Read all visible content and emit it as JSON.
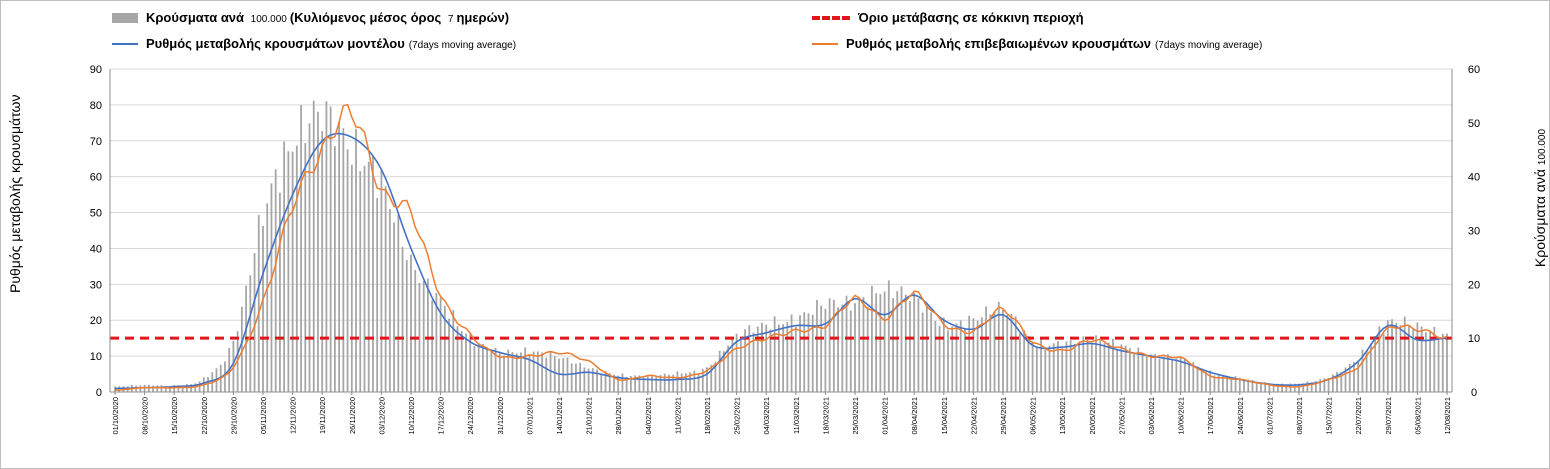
{
  "legend": {
    "bars_label": "Κρούσματα ανά",
    "bars_label_small": "100.000",
    "bars_label_rest": "(Κυλιόμενος μέσος όρος",
    "bars_label_small2": "7",
    "bars_label_end": "ημερών)",
    "threshold_label": "Όριο μετάβασης σε κόκκινη περιοχή",
    "model_label": "Ρυθμός μεταβολής κρουσμάτων μοντέλου",
    "model_label_small": "(7days moving average)",
    "confirmed_label": "Ρυθμός μεταβολής επιβεβαιωμένων κρουσμάτων",
    "confirmed_label_small": "(7days moving average)"
  },
  "axes": {
    "left_title": "Ρυθμός μεταβολής κρουσμάτων",
    "right_title_main": "Κρούσματα ανά",
    "right_title_small": "100.000"
  },
  "colors": {
    "bars": "#a6a6a6",
    "model_line": "#4472c4",
    "confirmed_line": "#ed7d31",
    "threshold": "#e0161b",
    "grid": "#d9d9d9"
  },
  "chart_data": {
    "type": "bar+line",
    "left_axis": {
      "min": 0,
      "max": 90,
      "step": 10
    },
    "right_axis": {
      "min": 0,
      "max": 60,
      "step": 10
    },
    "grid": true,
    "legend_position": "top",
    "x_tick_labels": [
      "01/10/2020",
      "08/10/2020",
      "15/10/2020",
      "22/10/2020",
      "29/10/2020",
      "05/11/2020",
      "12/11/2020",
      "19/11/2020",
      "26/11/2020",
      "03/12/2020",
      "10/12/2020",
      "17/12/2020",
      "24/12/2020",
      "31/12/2020",
      "07/01/2021",
      "14/01/2021",
      "21/01/2021",
      "28/01/2021",
      "04/02/2021",
      "11/02/2021",
      "18/02/2021",
      "25/02/2021",
      "04/03/2021",
      "11/03/2021",
      "18/03/2021",
      "25/03/2021",
      "01/04/2021",
      "08/04/2021",
      "15/04/2021",
      "22/04/2021",
      "29/04/2021",
      "06/05/2021",
      "13/05/2021",
      "20/05/2021",
      "27/05/2021",
      "03/06/2021",
      "10/06/2021",
      "17/06/2021",
      "24/06/2021",
      "01/07/2021",
      "08/07/2021",
      "15/07/2021",
      "22/07/2021",
      "29/07/2021",
      "05/08/2021",
      "12/08/2021"
    ],
    "threshold_value_left_axis": 15,
    "weekly_cases_per_100k_right_axis": [
      1.0,
      1.3,
      1.2,
      2.5,
      9.5,
      33,
      46,
      52,
      45,
      39,
      24,
      17,
      10,
      7.5,
      7.5,
      6.5,
      4.5,
      3.2,
      3.0,
      3.5,
      4.5,
      10.5,
      12.5,
      13.5,
      16.5,
      16.5,
      19,
      17.5,
      12.5,
      13.5,
      15.5,
      9.5,
      9,
      9.8,
      8.6,
      6.8,
      6.2,
      3.6,
      2.6,
      1.6,
      1.6,
      2.8,
      6.3,
      12.8,
      12.2,
      10.5
    ],
    "series": [
      {
        "name": "Ρυθμός μεταβολής κρουσμάτων μοντέλου",
        "axis": "left",
        "values": [
          1.0,
          1.2,
          1.5,
          2.5,
          8,
          33,
          55,
          70,
          71,
          62,
          40,
          22,
          14,
          11,
          9,
          5,
          5.5,
          4,
          3.5,
          3.5,
          5,
          14,
          16.5,
          18.5,
          19,
          26,
          21.5,
          27,
          20,
          17.5,
          21.5,
          13,
          12.5,
          13.5,
          11.5,
          10,
          8.5,
          5.5,
          3.5,
          2.2,
          2.0,
          3.5,
          8.5,
          18.5,
          14.5,
          15
        ]
      },
      {
        "name": "Ρυθμός μεταβολής επιβεβαιωμένων κρουσμάτων",
        "axis": "left",
        "values": [
          0.5,
          1.2,
          1.2,
          2.0,
          7,
          25,
          52,
          67,
          78,
          56,
          50,
          27,
          16,
          10,
          10,
          11,
          8.5,
          3.5,
          4.5,
          4,
          6,
          12,
          15,
          17,
          18.5,
          26,
          20.5,
          27.5,
          19,
          17,
          23,
          14,
          11.5,
          14.5,
          12,
          10,
          9.5,
          4.5,
          3.5,
          2.0,
          1.5,
          3.5,
          7,
          17.5,
          17.5,
          15
        ]
      }
    ]
  }
}
